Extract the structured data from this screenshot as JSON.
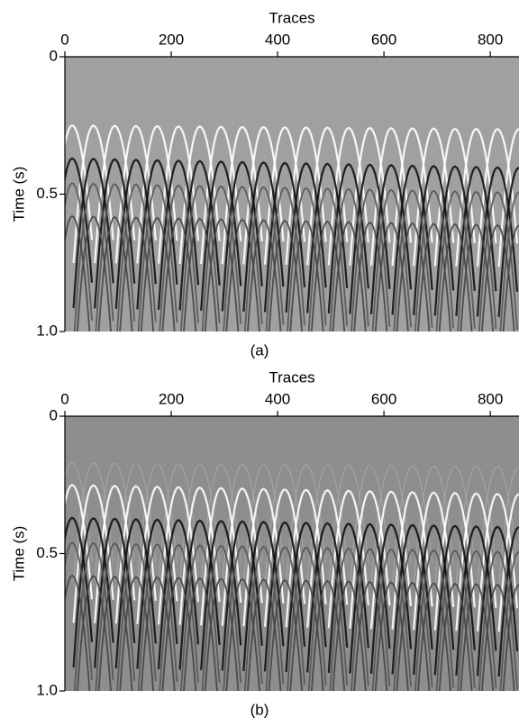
{
  "chart_data": [
    {
      "type": "image",
      "xlabel": "Traces",
      "ylabel": "Time (s)",
      "caption": "(a)",
      "xlim": [
        0,
        854
      ],
      "xticks": [
        0,
        200,
        400,
        600,
        800
      ],
      "ylim": [
        0,
        1
      ],
      "yticks": [
        0,
        0.5,
        {
          "value": 1,
          "label": "1.0"
        }
      ],
      "color": "#a0a0a0"
    },
    {
      "type": "image",
      "xlabel": "Traces",
      "ylabel": "Time (s)",
      "caption": "(b)",
      "xlim": [
        0,
        854
      ],
      "xticks": [
        0,
        200,
        400,
        600,
        800
      ],
      "ylim": [
        0,
        1
      ],
      "yticks": [
        0,
        0.5,
        {
          "value": 1,
          "label": "1.0"
        }
      ],
      "color": "#8e8e8e"
    }
  ]
}
